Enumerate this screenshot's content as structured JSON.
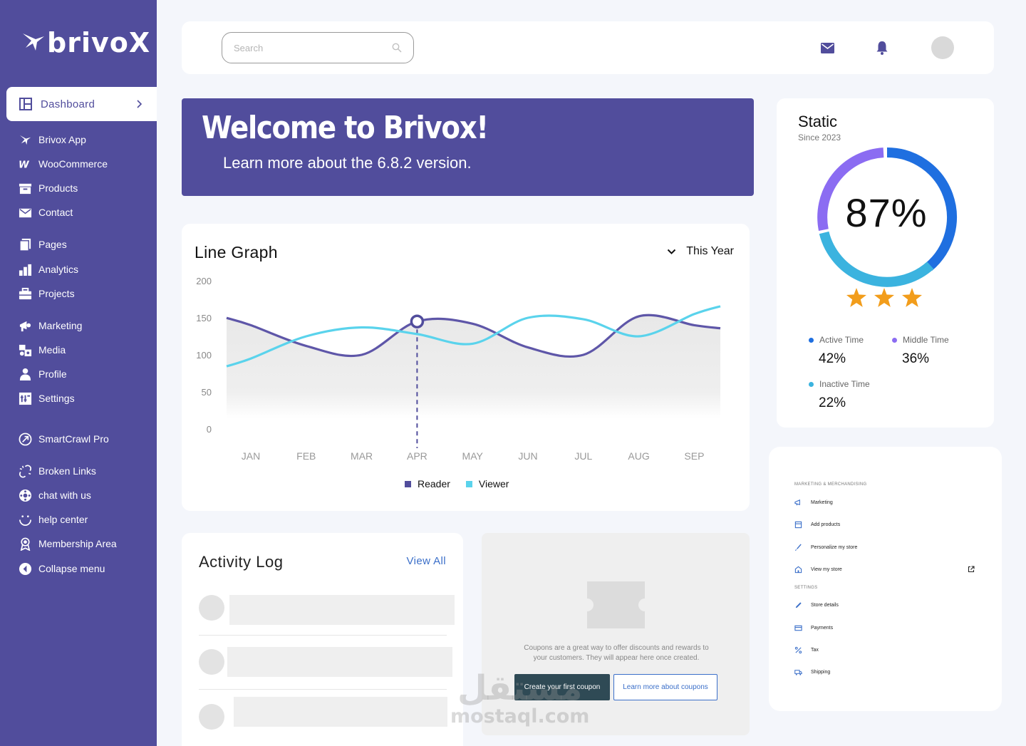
{
  "brand": {
    "name": "brivoX"
  },
  "colors": {
    "sidebar": "#514d9c",
    "accent_blue": "#1f6fe0",
    "accent_cyan": "#3bb3df",
    "accent_violet": "#8b6cf2",
    "star": "#f29d1b"
  },
  "sidebar": {
    "active": {
      "label": "Dashboard",
      "icon": "dashboard-icon"
    },
    "items": [
      {
        "label": "Brivox App",
        "icon": "bird-icon"
      },
      {
        "label": "WooCommerce",
        "icon": "woocommerce-icon"
      },
      {
        "label": "Products",
        "icon": "products-icon"
      },
      {
        "label": "Contact",
        "icon": "mail-icon"
      },
      {
        "label": "Pages",
        "icon": "pages-icon"
      },
      {
        "label": "Analytics",
        "icon": "analytics-icon"
      },
      {
        "label": "Projects",
        "icon": "briefcase-icon"
      },
      {
        "label": "Marketing",
        "icon": "megaphone-icon"
      },
      {
        "label": "Media",
        "icon": "media-icon"
      },
      {
        "label": "Profile",
        "icon": "profile-icon"
      },
      {
        "label": "Settings",
        "icon": "settings-icon"
      },
      {
        "label": "SmartCrawl Pro",
        "icon": "smartcrawl-icon"
      },
      {
        "label": "Broken Links",
        "icon": "broken-links-icon"
      },
      {
        "label": "chat with us",
        "icon": "chat-icon"
      },
      {
        "label": "help center",
        "icon": "help-icon"
      },
      {
        "label": "Membership Area",
        "icon": "membership-icon"
      },
      {
        "label": "Collapse menu",
        "icon": "collapse-icon"
      }
    ]
  },
  "topbar": {
    "search_placeholder": "Search"
  },
  "banner": {
    "title": "Welcome to Brivox!",
    "subtitle": "Learn more about the 6.8.2 version."
  },
  "graph": {
    "title": "Line Graph",
    "filter": "This Year",
    "legend": [
      "Reader",
      "Viewer"
    ]
  },
  "chart_data": {
    "type": "line",
    "x": [
      "JAN",
      "FEB",
      "MAR",
      "APR",
      "MAY",
      "JUN",
      "JUL",
      "AUG",
      "SEP"
    ],
    "ylim": [
      0,
      200
    ],
    "yticks": [
      200,
      150,
      100,
      50,
      0
    ],
    "series": [
      {
        "name": "Reader",
        "color": "#5e56a8",
        "values": [
          140,
          112,
          100,
          145,
          142,
          110,
          100,
          152,
          140
        ]
      },
      {
        "name": "Viewer",
        "color": "#5ad3ec",
        "values": [
          95,
          125,
          137,
          128,
          115,
          150,
          148,
          125,
          155
        ]
      }
    ],
    "highlight": "APR",
    "grid": false,
    "legend_position": "bottom-center"
  },
  "static": {
    "title": "Static",
    "since": "Since 2023",
    "percent": "87%",
    "percent_value": 87,
    "rating": 3,
    "stats": [
      {
        "label": "Active Time",
        "value": "42%",
        "color": "#1f6fe0"
      },
      {
        "label": "Middle Time",
        "value": "36%",
        "color": "#8b6cf2"
      },
      {
        "label": "Inactive Time",
        "value": "22%",
        "color": "#3bb3df"
      }
    ]
  },
  "activity": {
    "title": "Activity Log",
    "view_all": "View All"
  },
  "coupons": {
    "text": "Coupons are a great way to offer discounts and rewards to your customers. They will appear here once created.",
    "primary": "Create your first coupon",
    "secondary": "Learn more about coupons"
  },
  "menu_card": {
    "section1": "MARKETING & MERCHANDISING",
    "items1": [
      {
        "label": "Marketing",
        "icon": "megaphone-icon"
      },
      {
        "label": "Add products",
        "icon": "box-icon"
      },
      {
        "label": "Personalize my store",
        "icon": "brush-icon"
      },
      {
        "label": "View my store",
        "icon": "store-icon"
      }
    ],
    "section2": "SETTINGS",
    "items2": [
      {
        "label": "Store details",
        "icon": "pencil-icon"
      },
      {
        "label": "Payments",
        "icon": "card-icon"
      },
      {
        "label": "Tax",
        "icon": "percent-icon"
      },
      {
        "label": "Shipping",
        "icon": "truck-icon"
      }
    ]
  },
  "watermark": {
    "arabic": "مستقل",
    "latin": "mostaql.com"
  }
}
